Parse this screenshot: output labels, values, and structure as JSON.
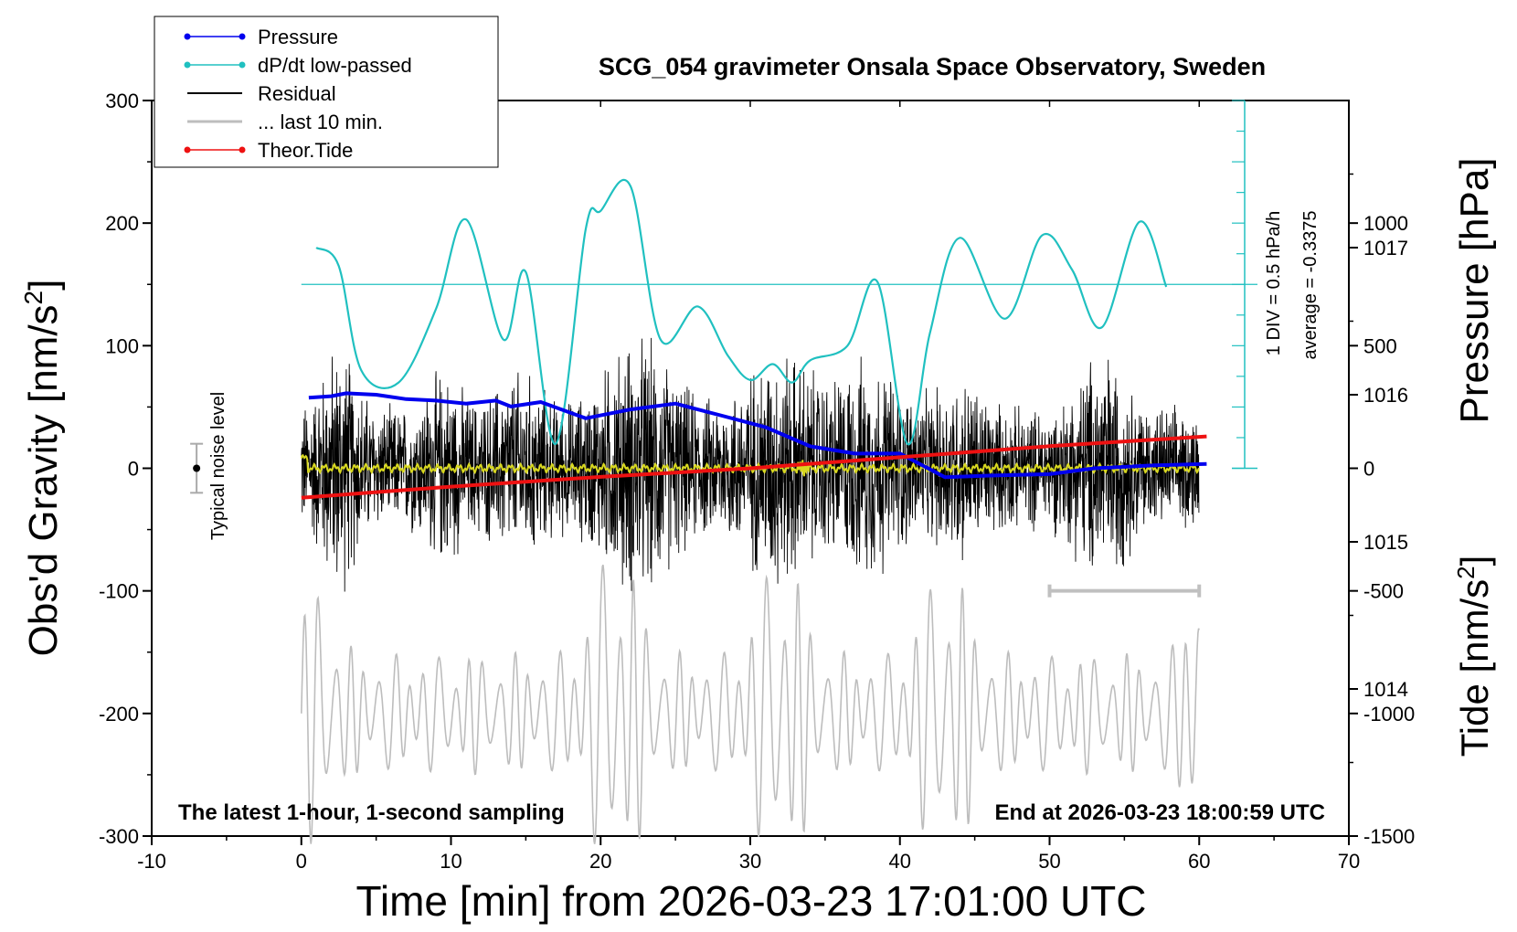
{
  "chart_data": {
    "type": "line",
    "title": "SCG_054 gravimeter Onsala Space Observatory, Sweden",
    "xlabel": "Time [min] from 2026-03-23 17:01:00 UTC",
    "ylabel_left": "Obs'd Gravity [nm/s2]",
    "ylabel_pressure": "Pressure [hPa]",
    "ylabel_tide": "Tide [nm/s2]",
    "xlim": [
      -10,
      70
    ],
    "ylim_left": [
      -300,
      300
    ],
    "pressure_lim": [
      1013,
      1018
    ],
    "tide_lim": [
      -1500,
      1500
    ],
    "x_ticks": [
      "-10",
      "0",
      "10",
      "20",
      "30",
      "40",
      "50",
      "60",
      "70"
    ],
    "y_ticks_left": [
      "300",
      "200",
      "100",
      "0",
      "-100",
      "-200",
      "-300"
    ],
    "pressure_ticks": [
      "1014",
      "1015",
      "1016",
      "1017"
    ],
    "tide_ticks": [
      "1000",
      "500",
      "0",
      "-500",
      "-1000",
      "-1500"
    ],
    "legend_placement": "top-left",
    "legend": [
      "Pressure",
      "dP/dt low-passed",
      "Residual",
      "... last 10 min.",
      "Theor.Tide"
    ],
    "bottom_left_note": "The latest 1-hour, 1-second sampling",
    "bottom_right_note": "End at 2026-03-23 18:00:59 UTC",
    "noise_label": "Typical noise level",
    "noise_level": [
      -20,
      20
    ],
    "scale_bar_label": "1 DIV = 0.5 hPa/h",
    "average_label": "average = -0.3375",
    "colors": {
      "pressure": "#0000ee",
      "dpdt": "#20c0c0",
      "residual": "#000000",
      "last10": "#bdbdbd",
      "tide": "#ee1111",
      "smooth": "#d8d820"
    },
    "series": [
      {
        "name": "Pressure",
        "axis": "pressure",
        "x": [
          0.5,
          2,
          3,
          5,
          7,
          9,
          11,
          13,
          14,
          16,
          19,
          22,
          25,
          28,
          31,
          34,
          37,
          40,
          43,
          46,
          50,
          53,
          57,
          60.5
        ],
        "values": [
          1015.98,
          1015.99,
          1016.01,
          1016.0,
          1015.97,
          1015.96,
          1015.94,
          1015.96,
          1015.92,
          1015.95,
          1015.84,
          1015.9,
          1015.94,
          1015.86,
          1015.78,
          1015.65,
          1015.6,
          1015.6,
          1015.44,
          1015.45,
          1015.46,
          1015.5,
          1015.52,
          1015.53
        ]
      },
      {
        "name": "dP/dt low-passed",
        "axis": "left",
        "x": [
          1,
          2.5,
          4,
          6.5,
          9,
          11,
          13.5,
          15,
          17,
          19,
          20,
          22,
          24,
          26.5,
          28.5,
          30,
          31.5,
          32.8,
          34,
          36.5,
          38.5,
          40.5,
          42,
          44,
          47,
          49.5,
          51.5,
          53.5,
          56,
          57.8
        ],
        "values": [
          180,
          165,
          80,
          70,
          130,
          203,
          105,
          160,
          20,
          195,
          210,
          230,
          105,
          132,
          92,
          72,
          85,
          70,
          88,
          100,
          152,
          20,
          110,
          188,
          122,
          190,
          162,
          115,
          201,
          148
        ]
      },
      {
        "name": "Theor.Tide",
        "axis": "tide",
        "x": [
          0,
          10,
          20,
          30,
          40,
          50,
          60.5
        ],
        "values": [
          -120,
          -75,
          -35,
          0,
          45,
          90,
          130
        ]
      }
    ]
  }
}
